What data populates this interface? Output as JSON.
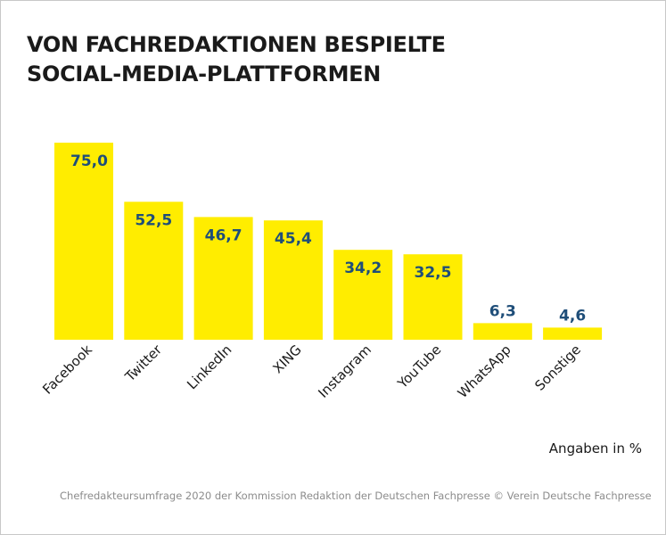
{
  "title_lines": [
    "VON FACHREDAKTIONEN BESPIELTE",
    "SOCIAL-MEDIA-PLATTFORMEN"
  ],
  "unit_note": "Angaben in %",
  "source": "Chefredakteursumfrage 2020 der Kommission Redaktion der Deutschen Fachpresse © Verein Deutsche Fachpresse",
  "colors": {
    "bar": "#ffed00",
    "value_label": "#1f4e79",
    "text": "#1a1a1a",
    "source": "#8c8c8c"
  },
  "chart_data": {
    "type": "bar",
    "title": "VON FACHREDAKTIONEN BESPIELTE SOCIAL-MEDIA-PLATTFORMEN",
    "categories": [
      "Facebook",
      "Twitter",
      "LinkedIn",
      "XING",
      "Instagram",
      "YouTube",
      "WhatsApp",
      "Sonstige"
    ],
    "values": [
      75.0,
      52.5,
      46.7,
      45.4,
      34.2,
      32.5,
      6.3,
      4.6
    ],
    "value_labels": [
      "75,0",
      "52,5",
      "46,7",
      "45,4",
      "34,2",
      "32,5",
      "6,3",
      "4,6"
    ],
    "xlabel": "",
    "ylabel": "",
    "unit": "%",
    "ylim": [
      0,
      75
    ],
    "grid": false,
    "legend": false
  }
}
